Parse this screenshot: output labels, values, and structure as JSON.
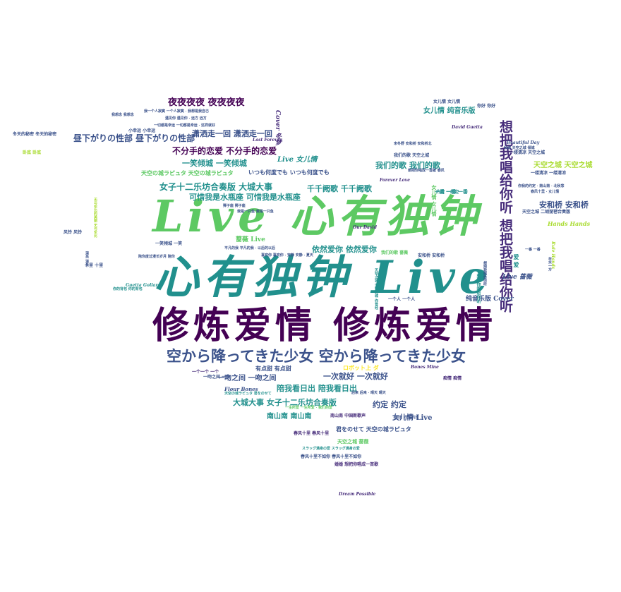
{
  "colors": {
    "purple": "#440154",
    "indigo": "#3b528b",
    "teal": "#21908d",
    "green": "#5dc963",
    "yellow": "#fde725"
  },
  "words": {
    "w01": "Live 心有独钟",
    "w02": "心有独钟 Live",
    "w03": "修炼爱情 修炼爱情",
    "w04": "空から降ってきた少女 空から降ってきた少女",
    "w05": "想把我唱给你听 想把我唱给你听",
    "w06": "夜夜夜夜 夜夜夜夜",
    "w07": "潇洒走一回 潇洒走一回",
    "w08": "昼下がりの性部 昼下がりの性部",
    "w09": "不分手的恋爱 不分手的恋爱",
    "w10": "一笑倾城 一笑倾城",
    "w11": "女子十二乐坊合奏版 大城大事",
    "w12": "可惜我是水瓶座 可惜我是水瓶座",
    "w13": "千千阙歌 千千阙歌",
    "w14": "依然爱你 依然爱你",
    "w15": "我们的歌 我们的歌",
    "w16": "女儿情 纯音乐版",
    "w17": "天空之城 天空之城",
    "w18": "安和桥 安和桥",
    "w19": "一次就好 一次就好",
    "w20": "一吻之间 一吻之间",
    "w21": "陪我看日出 陪我看日出",
    "w22": "大城大事 女子十二乐坊合奏版",
    "w23": "约定 约定",
    "w24": "南山南 南山南",
    "w25": "女儿情 Live",
    "w26": "纯音乐版 Cover",
    "w27": "Live 蔷薇",
    "w28": "蔷薇 Live",
    "w29": "Live 女儿情",
    "w30": "Cover 冬梦",
    "w31": "Hands Hands",
    "w32": "Flour Bones",
    "w33": "Bones Mine",
    "w34": "David Guetta",
    "w35": "Dream Possible",
    "w36": "Forever Love",
    "w37": "Last Forever",
    "w38": "Guetta Gollard",
    "w39": "女儿情 女儿情",
    "w40": "天空の城ラピュタ 天空の城ラピュタ",
    "w41": "いつも何度でも いつも何度でも",
    "w42": "君をのせて 天空の城ラピュタ",
    "w43": "ロボット上 ダ",
    "w44": "安和桥 安和桥",
    "w45": "一个人 一个人",
    "w46": "有点甜 有点甜",
    "w47": "一个一个 一个",
    "w48": "一缕清凉 一缕清凉",
    "w49": "春风十里 春风十里",
    "w50": "天空之城 蔷薇",
    "w51": "我们的歌 天空之城",
    "w52": "南山南 中国新歌声",
    "w53": "痴情 痴情",
    "w54": "约定 一约定",
    "w55": "春风十里不如你 春风十里不如你",
    "w56": "婚婚 想把你唱成一首歌",
    "w57": "一吻之间 一吻",
    "w58": "你好 你好",
    "w59": "风铃 风铃",
    "w60": "我们的歌 蔷薇",
    "w61": "一笑倾城 一笑",
    "w62": "十里 十里",
    "w63": "冬天的秘密 冬天的秘密",
    "w64": "卧底 卧底",
    "w65": "小幸运 小幸运",
    "w66": "想把你唱给你听",
    "w67": "一番 一番 一番",
    "w68": "女儿情 女儿情",
    "w69": "爱 爱",
    "w70": "Our David",
    "w71": "Beautiful Day",
    "w72": "Rule Hands",
    "w73": "天空之城 二胡琵琶合奏版",
    "w74": "一缕清凉 天空之城"
  }
}
